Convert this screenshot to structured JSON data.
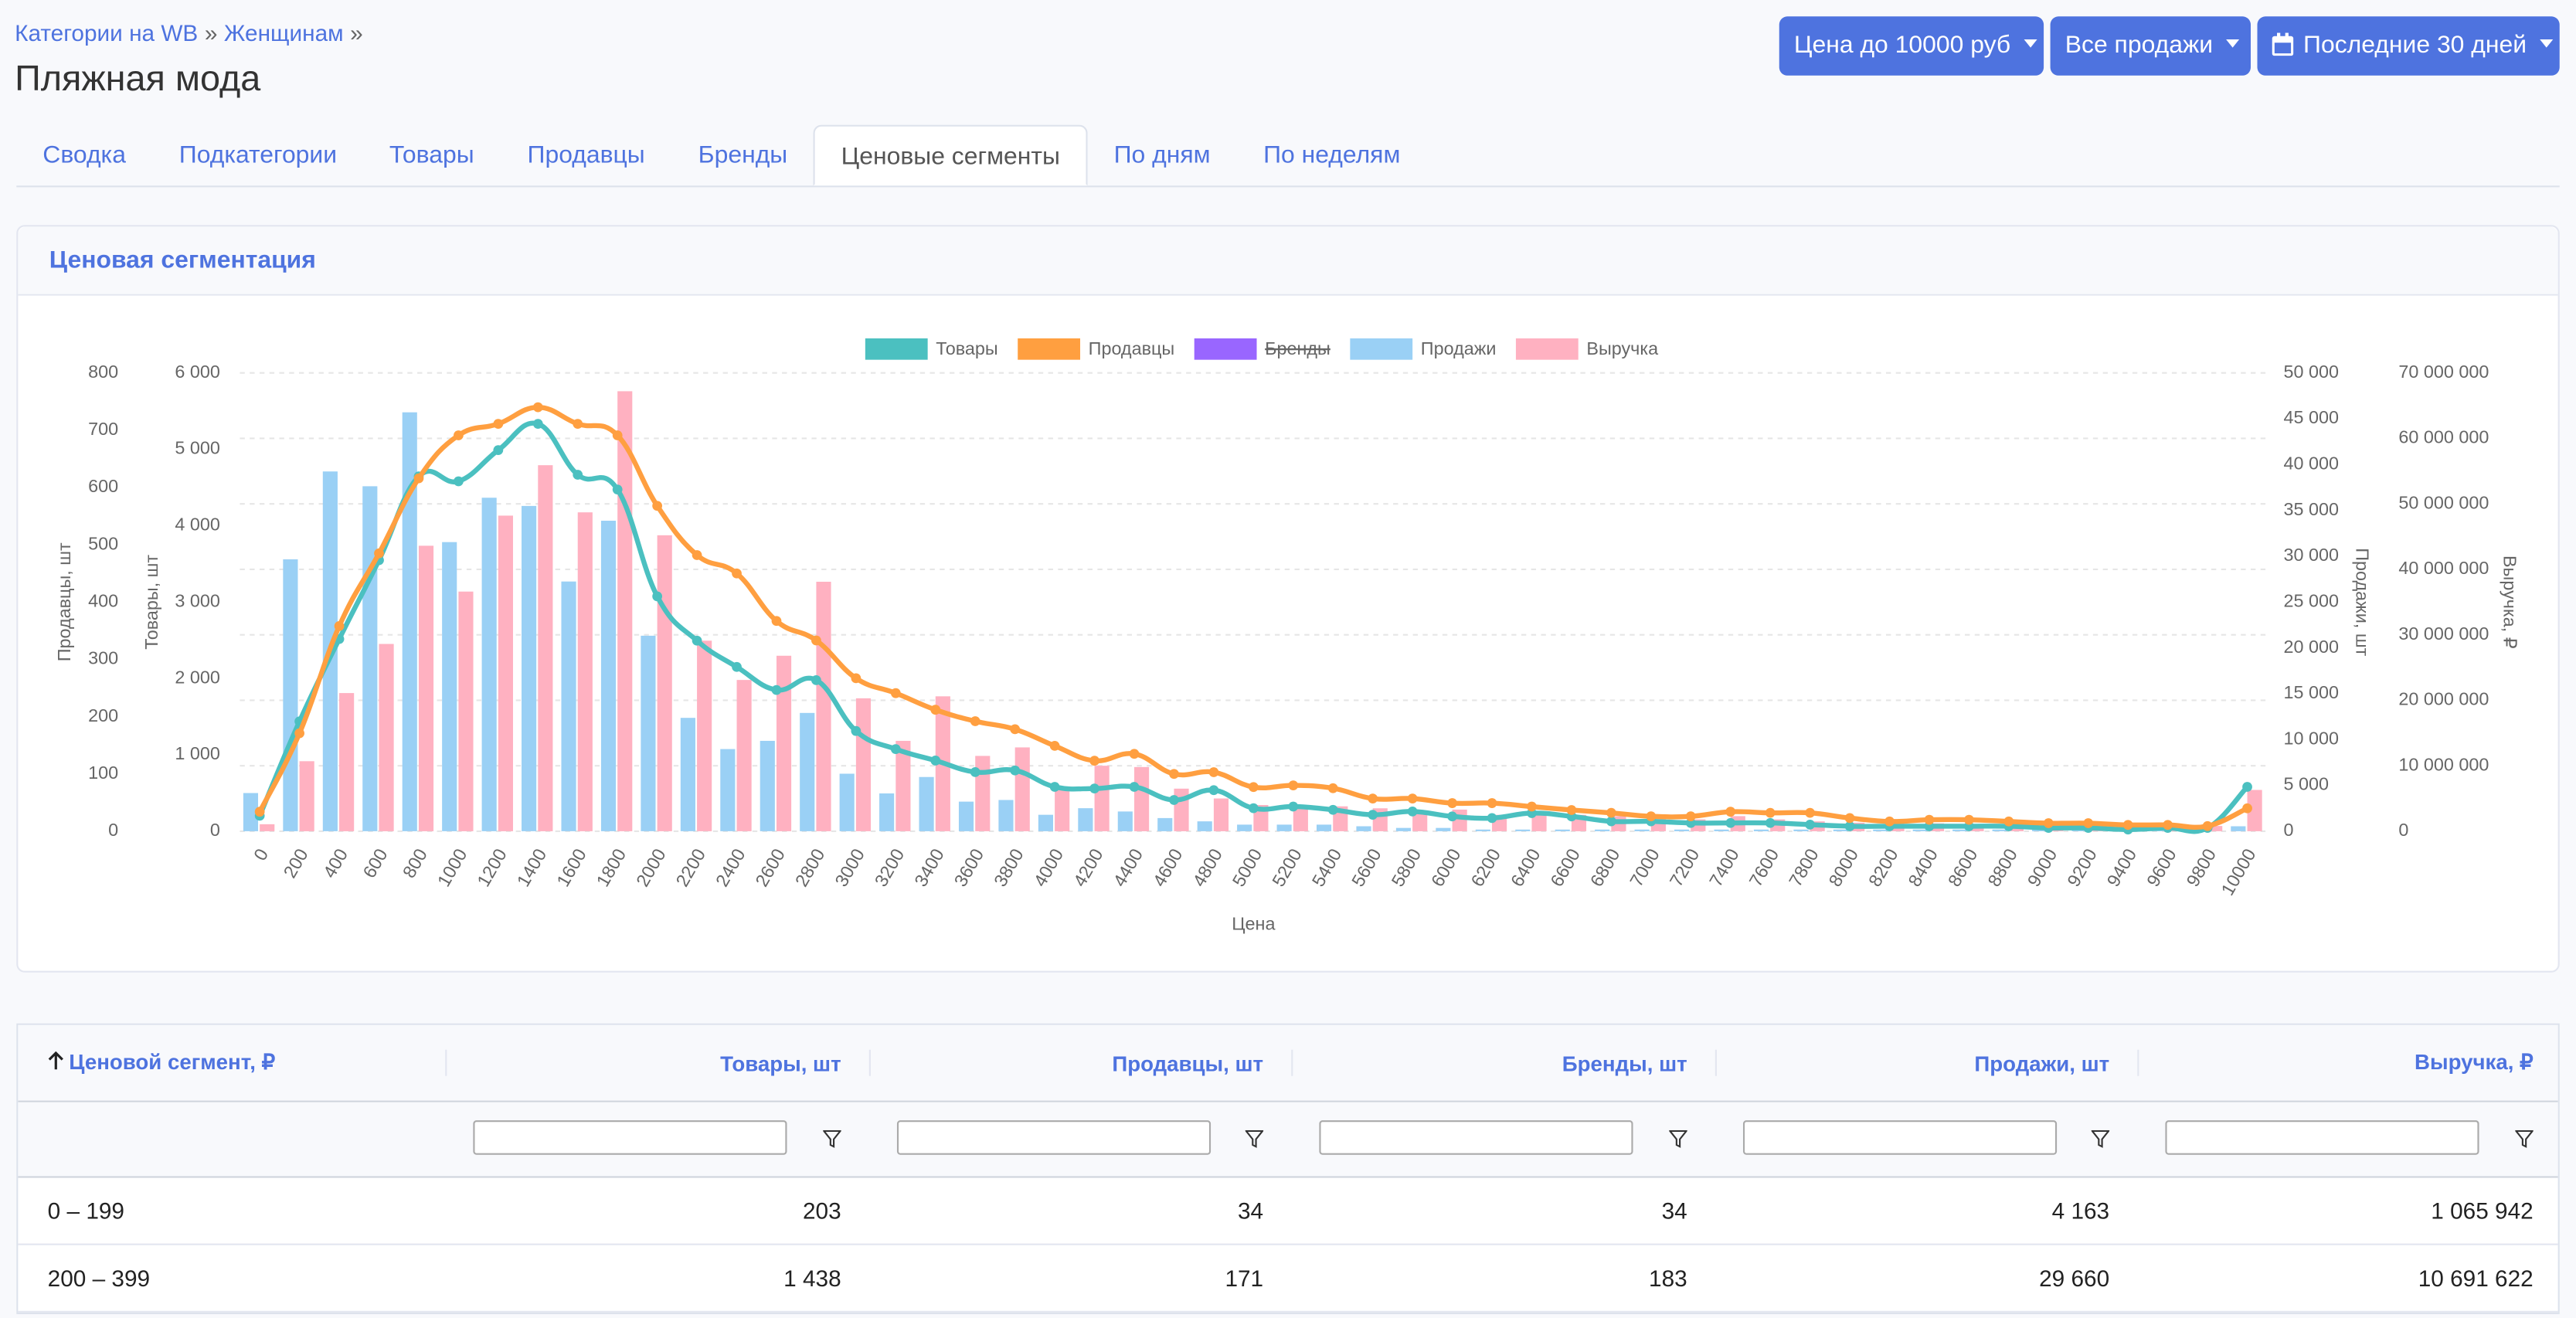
{
  "breadcrumb": [
    "Категории на WB",
    "Женщинам"
  ],
  "breadcrumb_separator": "»",
  "title": "Пляжная мода",
  "filters": [
    "Цена до 10000 руб",
    "Все продажи",
    "Последние 30 дней"
  ],
  "tabs": [
    "Сводка",
    "Подкатегории",
    "Товары",
    "Продавцы",
    "Бренды",
    "Ценовые сегменты",
    "По дням",
    "По неделям"
  ],
  "active_tab": 5,
  "card_title": "Ценовая сегментация",
  "chart_data": {
    "type": "combo",
    "xlabel": "Цена",
    "categories": [
      "0",
      "200",
      "400",
      "600",
      "800",
      "1000",
      "1200",
      "1400",
      "1600",
      "1800",
      "2000",
      "2200",
      "2400",
      "2600",
      "2800",
      "3000",
      "3200",
      "3400",
      "3600",
      "3800",
      "4000",
      "4200",
      "4400",
      "4600",
      "4800",
      "5000",
      "5200",
      "5400",
      "5600",
      "5800",
      "6000",
      "6200",
      "6400",
      "6600",
      "6800",
      "7000",
      "7200",
      "7400",
      "7600",
      "7800",
      "8000",
      "8200",
      "8400",
      "8600",
      "8800",
      "9000",
      "9200",
      "9400",
      "9600",
      "9800",
      "10000"
    ],
    "axes": [
      {
        "label": "Продавцы, шт",
        "side": "left",
        "lim": [
          0,
          800
        ],
        "ticks": [
          0,
          100,
          200,
          300,
          400,
          500,
          600,
          700,
          800
        ]
      },
      {
        "label": "Товары, шт",
        "side": "left",
        "lim": [
          0,
          6000
        ],
        "ticks": [
          0,
          {
            "value": 1000,
            "label": "1 000"
          },
          {
            "value": 2000,
            "label": "2 000"
          },
          {
            "value": 3000,
            "label": "3 000"
          },
          {
            "value": 4000,
            "label": "4 000"
          },
          {
            "value": 5000,
            "label": "5 000"
          },
          {
            "value": 6000,
            "label": "6 000"
          }
        ]
      },
      {
        "label": "Продажи, шт",
        "side": "right",
        "lim": [
          0,
          50000
        ],
        "ticks": [
          0,
          {
            "value": 5000,
            "label": "5 000"
          },
          {
            "value": 10000,
            "label": "10 000"
          },
          {
            "value": 15000,
            "label": "15 000"
          },
          {
            "value": 20000,
            "label": "20 000"
          },
          {
            "value": 25000,
            "label": "25 000"
          },
          {
            "value": 30000,
            "label": "30 000"
          },
          {
            "value": 35000,
            "label": "35 000"
          },
          {
            "value": 40000,
            "label": "40 000"
          },
          {
            "value": 45000,
            "label": "45 000"
          },
          {
            "value": 50000,
            "label": "50 000"
          }
        ]
      },
      {
        "label": "Выручка, ₽",
        "side": "right",
        "lim": [
          0,
          70000000
        ],
        "ticks": [
          0,
          {
            "value": 10000000,
            "label": "10 000 000"
          },
          {
            "value": 20000000,
            "label": "20 000 000"
          },
          {
            "value": 30000000,
            "label": "30 000 000"
          },
          {
            "value": 40000000,
            "label": "40 000 000"
          },
          {
            "value": 50000000,
            "label": "50 000 000"
          },
          {
            "value": 60000000,
            "label": "60 000 000"
          },
          {
            "value": 70000000,
            "label": "70 000 000"
          }
        ],
        "grid": true
      }
    ],
    "series": [
      {
        "name": "Товары",
        "type": "line",
        "color": "#4bc0c0",
        "axis": 1,
        "values": [
          203,
          1438,
          2516,
          3548,
          4645,
          4581,
          4989,
          5333,
          4667,
          4473,
          3075,
          2495,
          2151,
          1849,
          1978,
          1312,
          1075,
          925,
          774,
          796,
          581,
          559,
          581,
          409,
          538,
          301,
          323,
          280,
          215,
          258,
          194,
          172,
          237,
          194,
          129,
          129,
          108,
          108,
          108,
          86,
          65,
          65,
          65,
          65,
          65,
          43,
          43,
          22,
          43,
          43,
          581
        ]
      },
      {
        "name": "Продавцы",
        "type": "line",
        "color": "#ff9f40",
        "axis": 0,
        "values": [
          34,
          171,
          358,
          485,
          616,
          691,
          711,
          740,
          711,
          691,
          568,
          482,
          450,
          367,
          333,
          267,
          241,
          212,
          192,
          178,
          149,
          123,
          135,
          100,
          103,
          77,
          80,
          75,
          57,
          57,
          49,
          49,
          43,
          37,
          32,
          26,
          26,
          34,
          32,
          32,
          23,
          17,
          20,
          20,
          17,
          14,
          14,
          11,
          11,
          9,
          40
        ]
      },
      {
        "name": "Бренды",
        "type": "line",
        "color": "#9966ff",
        "axis": 1,
        "hidden": true
      },
      {
        "name": "Продажи",
        "type": "bar",
        "color": "#9ad0f5",
        "axis": 2,
        "values": [
          4163,
          29660,
          39247,
          37634,
          45699,
          31541,
          36380,
          35484,
          27240,
          33871,
          21326,
          12366,
          8961,
          9857,
          12903,
          6272,
          4122,
          5914,
          3226,
          3405,
          1792,
          2509,
          2151,
          1434,
          1075,
          717,
          717,
          717,
          538,
          358,
          358,
          179,
          179,
          179,
          179,
          179,
          179,
          179,
          179,
          179,
          179,
          179,
          179,
          179,
          179,
          179,
          179,
          179,
          179,
          179,
          538
        ]
      },
      {
        "name": "Выручка",
        "type": "bar",
        "color": "#ffb1c1",
        "axis": 3,
        "values": [
          1065942,
          10691622,
          21100000,
          28600000,
          43600000,
          36600000,
          48200000,
          55900000,
          48700000,
          67200000,
          45200000,
          29100000,
          23100000,
          26800000,
          38100000,
          20300000,
          13800000,
          20600000,
          11500000,
          12800000,
          6300000,
          10000000,
          9800000,
          6500000,
          5000000,
          4000000,
          3500000,
          3800000,
          3500000,
          3000000,
          3300000,
          2500000,
          2800000,
          2500000,
          2300000,
          2000000,
          1800000,
          2300000,
          1800000,
          1500000,
          1300000,
          1200000,
          1200000,
          1100000,
          1100000,
          1000000,
          1000000,
          900000,
          900000,
          800000,
          6300000
        ]
      }
    ]
  },
  "table": {
    "columns": [
      "Ценовой сегмент, ₽",
      "Товары, шт",
      "Продавцы, шт",
      "Бренды, шт",
      "Продажи, шт",
      "Выручка, ₽"
    ],
    "rows": [
      [
        "0 – 199",
        "203",
        "34",
        "34",
        "4 163",
        "1 065 942"
      ],
      [
        "200 – 399",
        "1 438",
        "171",
        "183",
        "29 660",
        "10 691 622"
      ]
    ]
  }
}
